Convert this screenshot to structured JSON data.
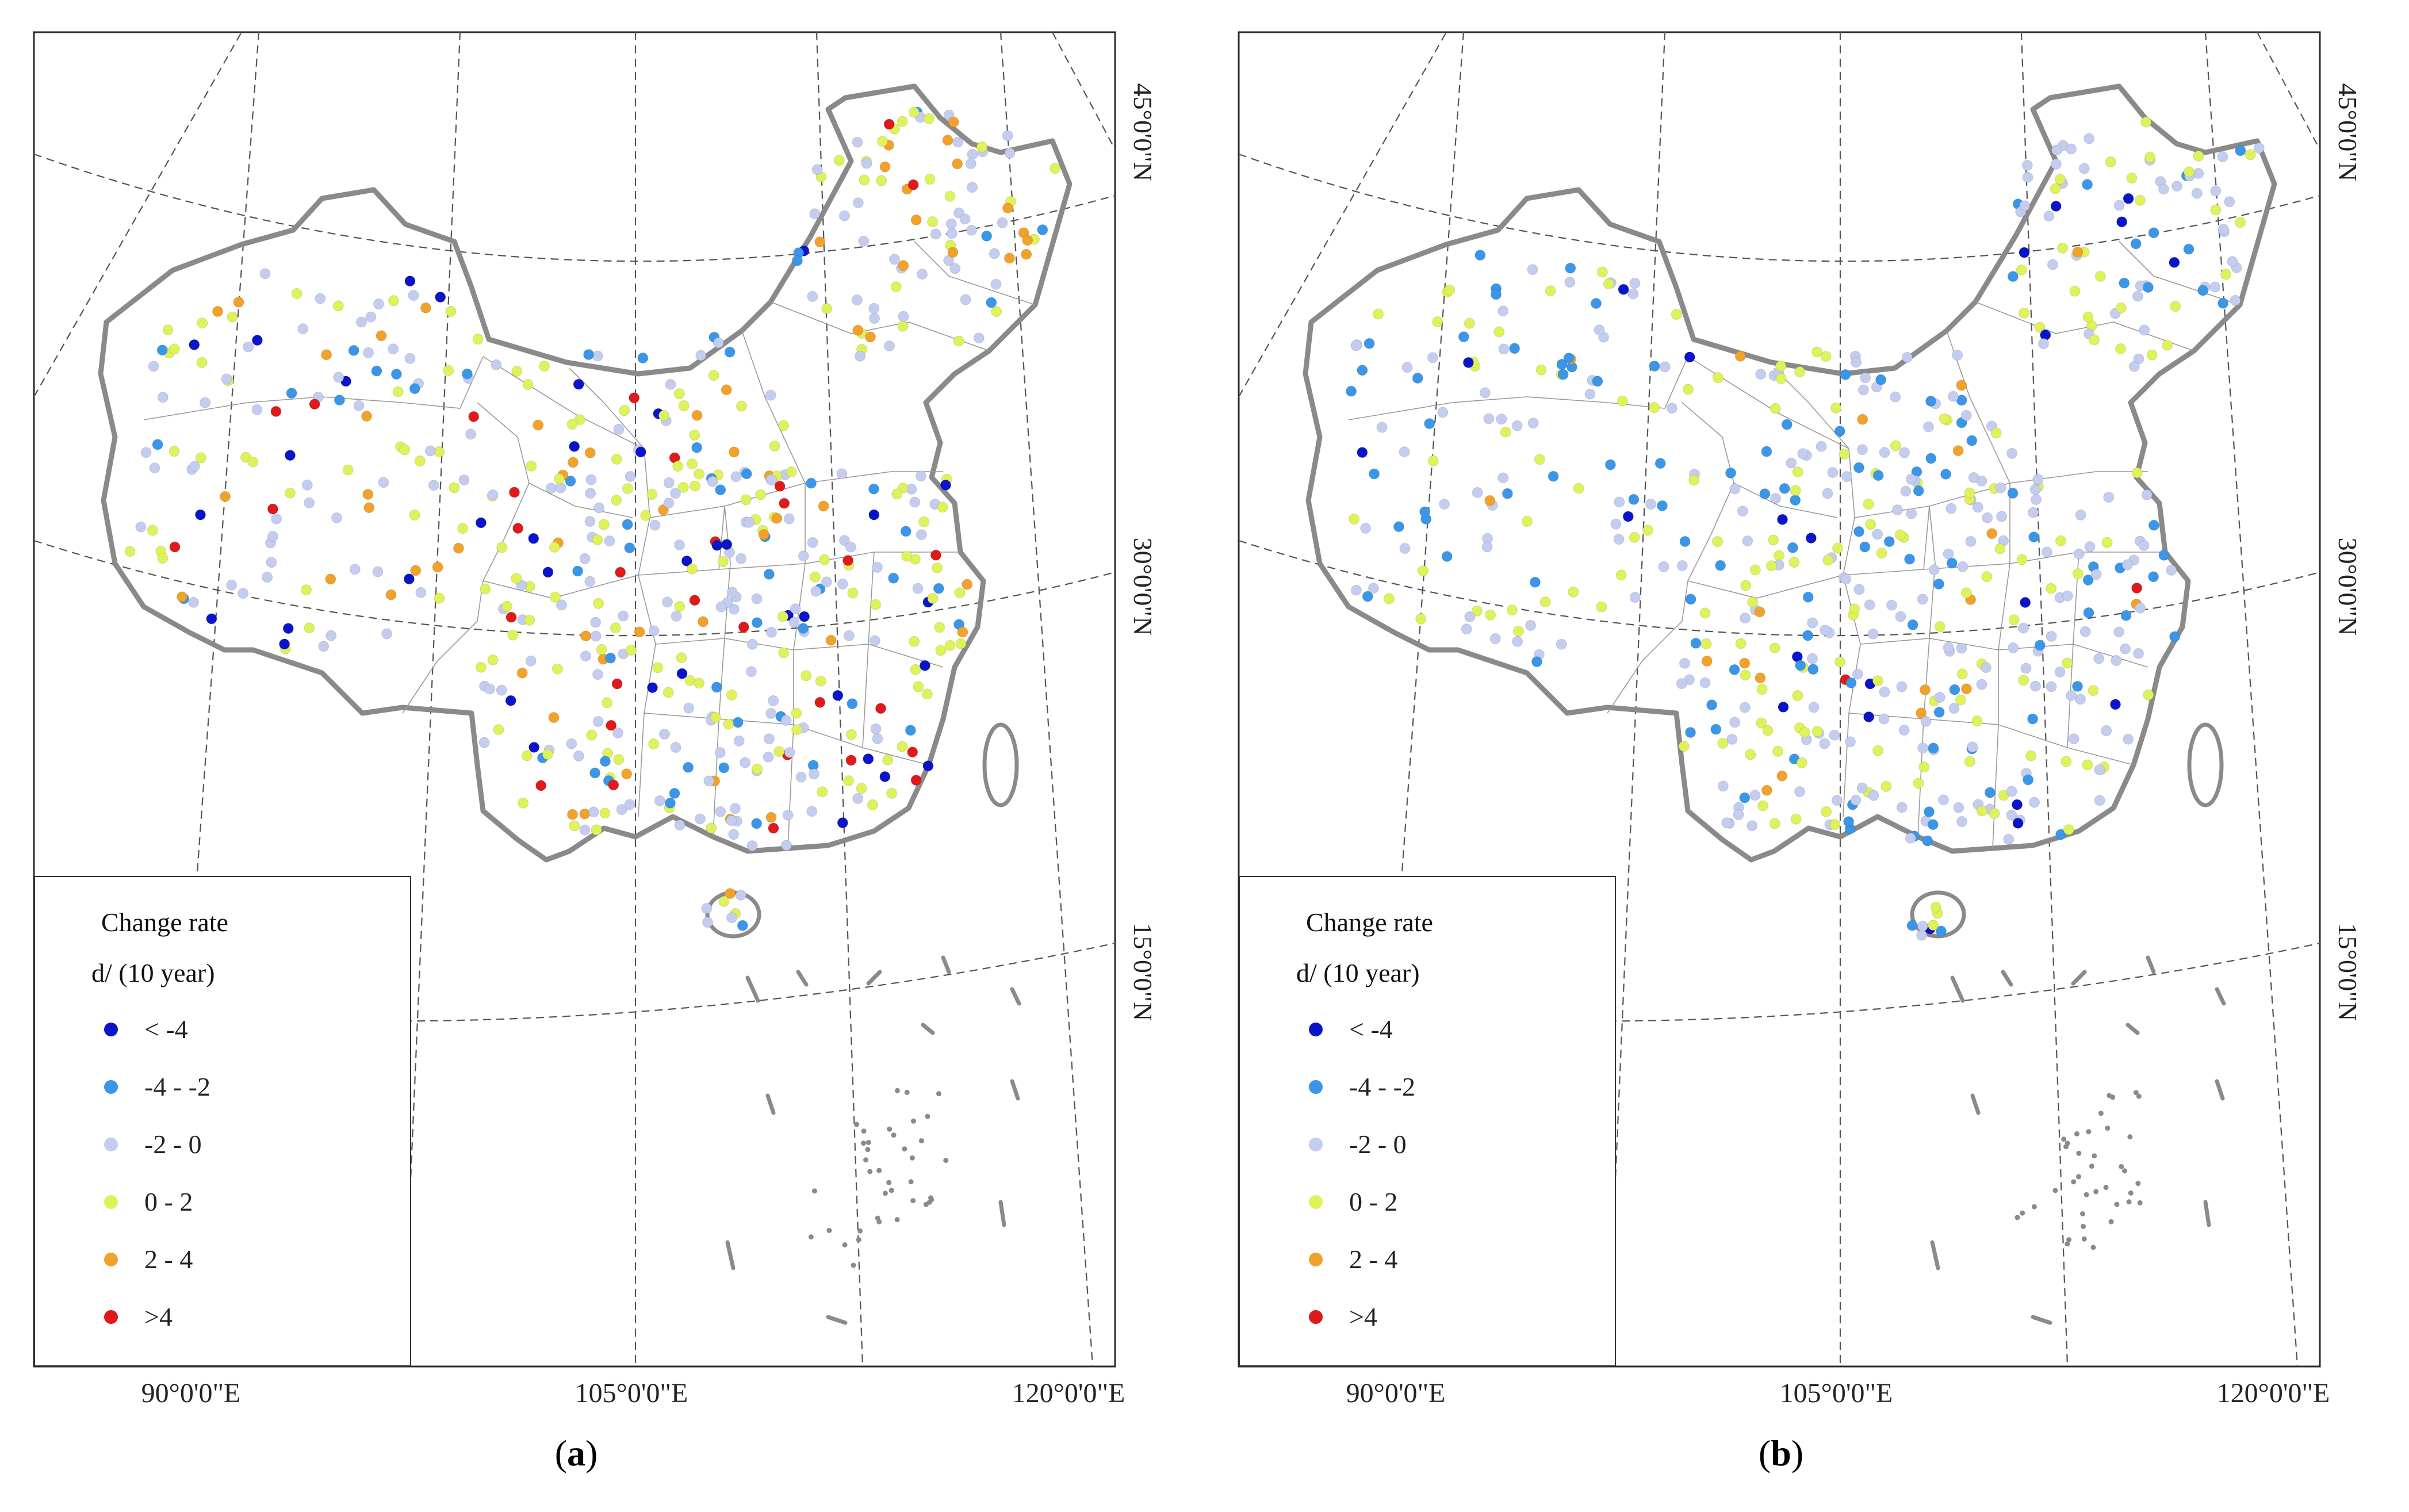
{
  "panels": [
    {
      "label_open": "(",
      "label_letter": "a",
      "label_close": ")",
      "legend_title": "Change rate",
      "legend_unit": "d/ (10 year)",
      "lon_labels": [
        "90°0'0\"E",
        "105°0'0\"E",
        "120°0'0\"E"
      ],
      "lat_labels": [
        "45°0'0\"N",
        "30°0'0\"N",
        "15°0'0\"N"
      ],
      "weights": [
        0.06,
        0.09,
        0.35,
        0.33,
        0.12,
        0.05
      ]
    },
    {
      "label_open": "(",
      "label_letter": "b",
      "label_close": ")",
      "legend_title": "Change rate",
      "legend_unit": "d/ (10 year)",
      "lon_labels": [
        "90°0'0\"E",
        "105°0'0\"E",
        "120°0'0\"E"
      ],
      "lat_labels": [
        "45°0'0\"N",
        "30°0'0\"N",
        "15°0'0\"N"
      ],
      "weights": [
        0.04,
        0.24,
        0.44,
        0.25,
        0.025,
        0.005
      ]
    }
  ],
  "legend_classes": [
    {
      "label": "< -4",
      "color": "#0a14c8"
    },
    {
      "label": "-4 - -2",
      "color": "#3a96e8"
    },
    {
      "label": "-2 - 0",
      "color": "#c4cdf0"
    },
    {
      "label": "0 - 2",
      "color": "#dff25a"
    },
    {
      "label": "2 - 4",
      "color": "#f2a12a"
    },
    {
      "label": ">4",
      "color": "#e0191b"
    }
  ]
}
